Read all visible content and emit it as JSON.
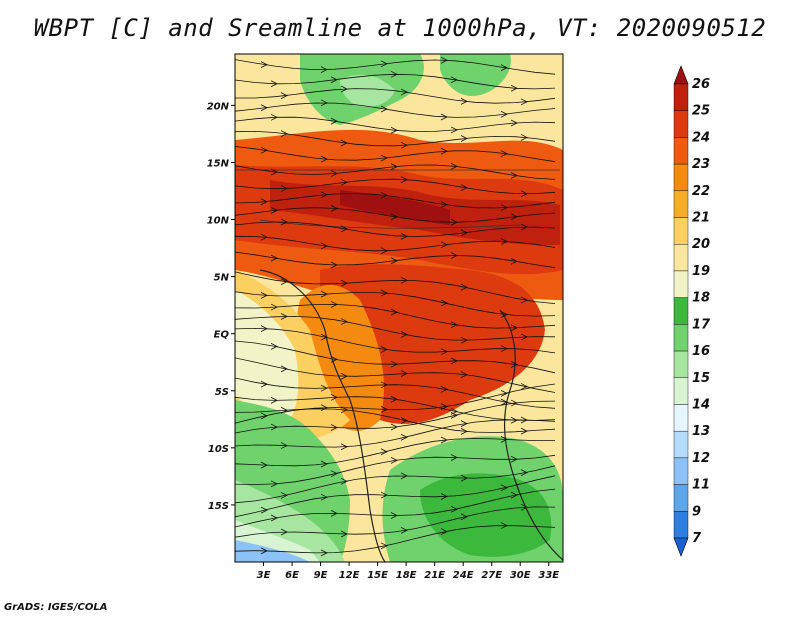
{
  "title": "WBPT [C] and Sreamline at 1000hPa, VT: 2020090512",
  "footer": "GrADS: IGES/COLA",
  "map": {
    "lat_labels": [
      "20N",
      "15N",
      "10N",
      "5N",
      "EQ",
      "5S",
      "10S",
      "15S"
    ],
    "lat_values": [
      20,
      15,
      10,
      5,
      0,
      -5,
      -10,
      -15
    ],
    "lon_labels": [
      "3E",
      "6E",
      "9E",
      "12E",
      "15E",
      "18E",
      "21E",
      "24E",
      "27E",
      "30E",
      "33E"
    ],
    "lon_values": [
      3,
      6,
      9,
      12,
      15,
      18,
      21,
      24,
      27,
      30,
      33
    ],
    "lon_range": [
      0,
      34.5
    ],
    "lat_range": [
      -20,
      24.5
    ]
  },
  "colorbar": {
    "labels": [
      "26",
      "25",
      "24",
      "23",
      "22",
      "21",
      "20",
      "19",
      "18",
      "17",
      "16",
      "15",
      "14",
      "13",
      "12",
      "11",
      "9",
      "7"
    ],
    "colors": [
      "#a01010",
      "#c0200e",
      "#dd3a10",
      "#ee5a10",
      "#f58a10",
      "#f7ac2a",
      "#fbd060",
      "#fae69c",
      "#f2f4c8",
      "#3cb83c",
      "#6fd26c",
      "#a6e6a0",
      "#d8f4d2",
      "#e6f6ff",
      "#b4dcff",
      "#8cc2f6",
      "#5ea6ea",
      "#2e80e0",
      "#1a60d0"
    ]
  }
}
